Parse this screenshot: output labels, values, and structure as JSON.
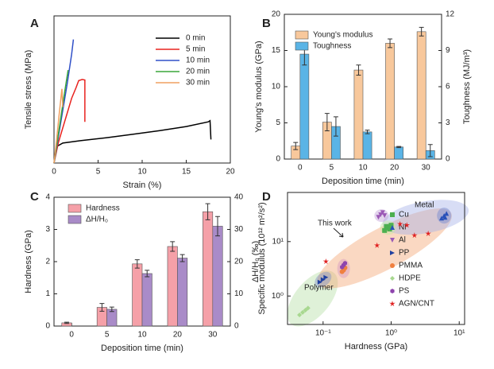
{
  "chart_data": [
    {
      "type": "line",
      "panel": "A",
      "xlabel": "Strain (%)",
      "ylabel": "Tensile stress (MPa)",
      "xlim": [
        0,
        20
      ],
      "xticks": [
        0,
        5,
        10,
        15,
        20
      ],
      "ylim": [
        0,
        250
      ],
      "series": [
        {
          "name": "0 min",
          "color": "#000000",
          "x": [
            0,
            0.3,
            1,
            3,
            6,
            9,
            12,
            15,
            17.5,
            17.7,
            17.8
          ],
          "values": [
            0,
            28,
            34,
            38,
            43,
            49,
            55,
            62,
            70,
            72,
            40
          ]
        },
        {
          "name": "5 min",
          "color": "#e8231f",
          "x": [
            0,
            0.5,
            1,
            1.5,
            2,
            2.5,
            2.8,
            3.2,
            3.5,
            3.5
          ],
          "values": [
            0,
            35,
            60,
            85,
            110,
            128,
            140,
            142,
            141,
            70
          ]
        },
        {
          "name": "10 min",
          "color": "#3050c8",
          "x": [
            0,
            0.5,
            1,
            1.5,
            2,
            2.2
          ],
          "values": [
            0,
            45,
            90,
            135,
            185,
            210
          ]
        },
        {
          "name": "20 min",
          "color": "#3aa63a",
          "x": [
            0,
            0.4,
            0.8,
            1.2,
            1.6
          ],
          "values": [
            0,
            40,
            80,
            120,
            158
          ]
        },
        {
          "name": "30 min",
          "color": "#f0a060",
          "x": [
            0,
            0.3,
            0.6,
            0.9,
            1.0
          ],
          "values": [
            0,
            40,
            85,
            126,
            95
          ]
        }
      ]
    },
    {
      "type": "bar",
      "panel": "B",
      "xlabel": "Deposition time (min)",
      "ylabel": "Young's modulus (GPa)",
      "y2label": "Toughness (MJ/m³)",
      "categories": [
        "0",
        "5",
        "10",
        "20",
        "30"
      ],
      "ylim": [
        0,
        20
      ],
      "yticks": [
        0,
        5,
        10,
        15,
        20
      ],
      "y2lim": [
        0,
        12
      ],
      "y2ticks": [
        0,
        3,
        6,
        9,
        12
      ],
      "series": [
        {
          "name": "Young's modulus",
          "color": "#f8c89c",
          "values": [
            1.8,
            5.1,
            12.3,
            16.0,
            17.6
          ],
          "errors": [
            0.5,
            1.2,
            0.7,
            0.6,
            0.6
          ]
        },
        {
          "name": "Toughness",
          "color": "#5ab4e6",
          "axis": "y2",
          "values": [
            8.7,
            2.7,
            2.25,
            1.0,
            0.7
          ],
          "errors": [
            0.9,
            0.8,
            0.15,
            0.05,
            0.5
          ]
        }
      ]
    },
    {
      "type": "bar",
      "panel": "C",
      "xlabel": "Deposition time (min)",
      "ylabel": "Hardness (GPa)",
      "y2label": "ΔH/H₀ (‰)",
      "categories": [
        "0",
        "5",
        "10",
        "20",
        "30"
      ],
      "ylim": [
        0,
        4
      ],
      "yticks": [
        0,
        1,
        2,
        3,
        4
      ],
      "y2lim": [
        0,
        40
      ],
      "y2ticks": [
        0,
        10,
        20,
        30,
        40
      ],
      "series": [
        {
          "name": "Hardness",
          "color": "#f5a0a8",
          "values": [
            0.1,
            0.58,
            1.93,
            2.47,
            3.55
          ],
          "errors": [
            0.02,
            0.12,
            0.13,
            0.15,
            0.25
          ]
        },
        {
          "name": "ΔH/H₀",
          "color": "#a98bc8",
          "axis": "y2",
          "values": [
            null,
            5.2,
            16.3,
            21.1,
            31.0
          ],
          "errors": [
            null,
            0.7,
            1.0,
            1.1,
            3.0
          ]
        }
      ]
    },
    {
      "type": "scatter",
      "panel": "D",
      "xlabel": "Hardness (GPa)",
      "ylabel": "Specific modulus (10¹² m²/s²)",
      "xscale": "log",
      "yscale": "log",
      "xlim": [
        0.03,
        12
      ],
      "ylim": [
        0.3,
        80
      ],
      "xticks": [
        {
          "value": 0.1,
          "label": "10⁻¹"
        },
        {
          "value": 1,
          "label": "10⁰"
        },
        {
          "value": 10,
          "label": "10¹"
        }
      ],
      "yticks": [
        {
          "value": 1,
          "label": "10⁰"
        },
        {
          "value": 10,
          "label": "10¹"
        }
      ],
      "annotations": [
        "Metal",
        "Polymer",
        "This work"
      ],
      "series": [
        {
          "name": "Cu",
          "color": "#4caf50",
          "marker": "square",
          "x": [
            0.8,
            0.9,
            1.0,
            0.85,
            0.95
          ],
          "values": [
            16,
            18,
            20,
            19,
            17
          ]
        },
        {
          "name": "Ni",
          "color": "#2850b8",
          "marker": "triangle-up",
          "x": [
            5.5,
            6.0,
            6.5,
            6.2
          ],
          "values": [
            27,
            30,
            33,
            28
          ]
        },
        {
          "name": "Al",
          "color": "#9b59b6",
          "marker": "triangle-down",
          "x": [
            0.65,
            0.7,
            0.75,
            0.8
          ],
          "values": [
            28,
            31,
            34,
            30
          ]
        },
        {
          "name": "PP",
          "color": "#2040a0",
          "marker": "triangle-right",
          "x": [
            0.09,
            0.1,
            0.11
          ],
          "values": [
            1.8,
            2.0,
            2.2
          ]
        },
        {
          "name": "PMMA",
          "color": "#f08040",
          "marker": "circle",
          "x": [
            0.19,
            0.2,
            0.21
          ],
          "values": [
            2.8,
            3.0,
            3.3
          ]
        },
        {
          "name": "HDPE",
          "color": "#a8d890",
          "marker": "diamond",
          "x": [
            0.045,
            0.05,
            0.055,
            0.06
          ],
          "values": [
            0.45,
            0.5,
            0.55,
            0.6
          ]
        },
        {
          "name": "PS",
          "color": "#8e44ad",
          "marker": "hexagon",
          "x": [
            0.19,
            0.2,
            0.21
          ],
          "values": [
            3.4,
            3.7,
            4.0
          ]
        },
        {
          "name": "AGN/CNT",
          "color": "#e02020",
          "marker": "star",
          "x": [
            0.11,
            0.62,
            1.35,
            1.7,
            2.2,
            3.5
          ],
          "values": [
            4.3,
            8.5,
            21,
            20,
            13,
            14
          ]
        }
      ]
    }
  ]
}
